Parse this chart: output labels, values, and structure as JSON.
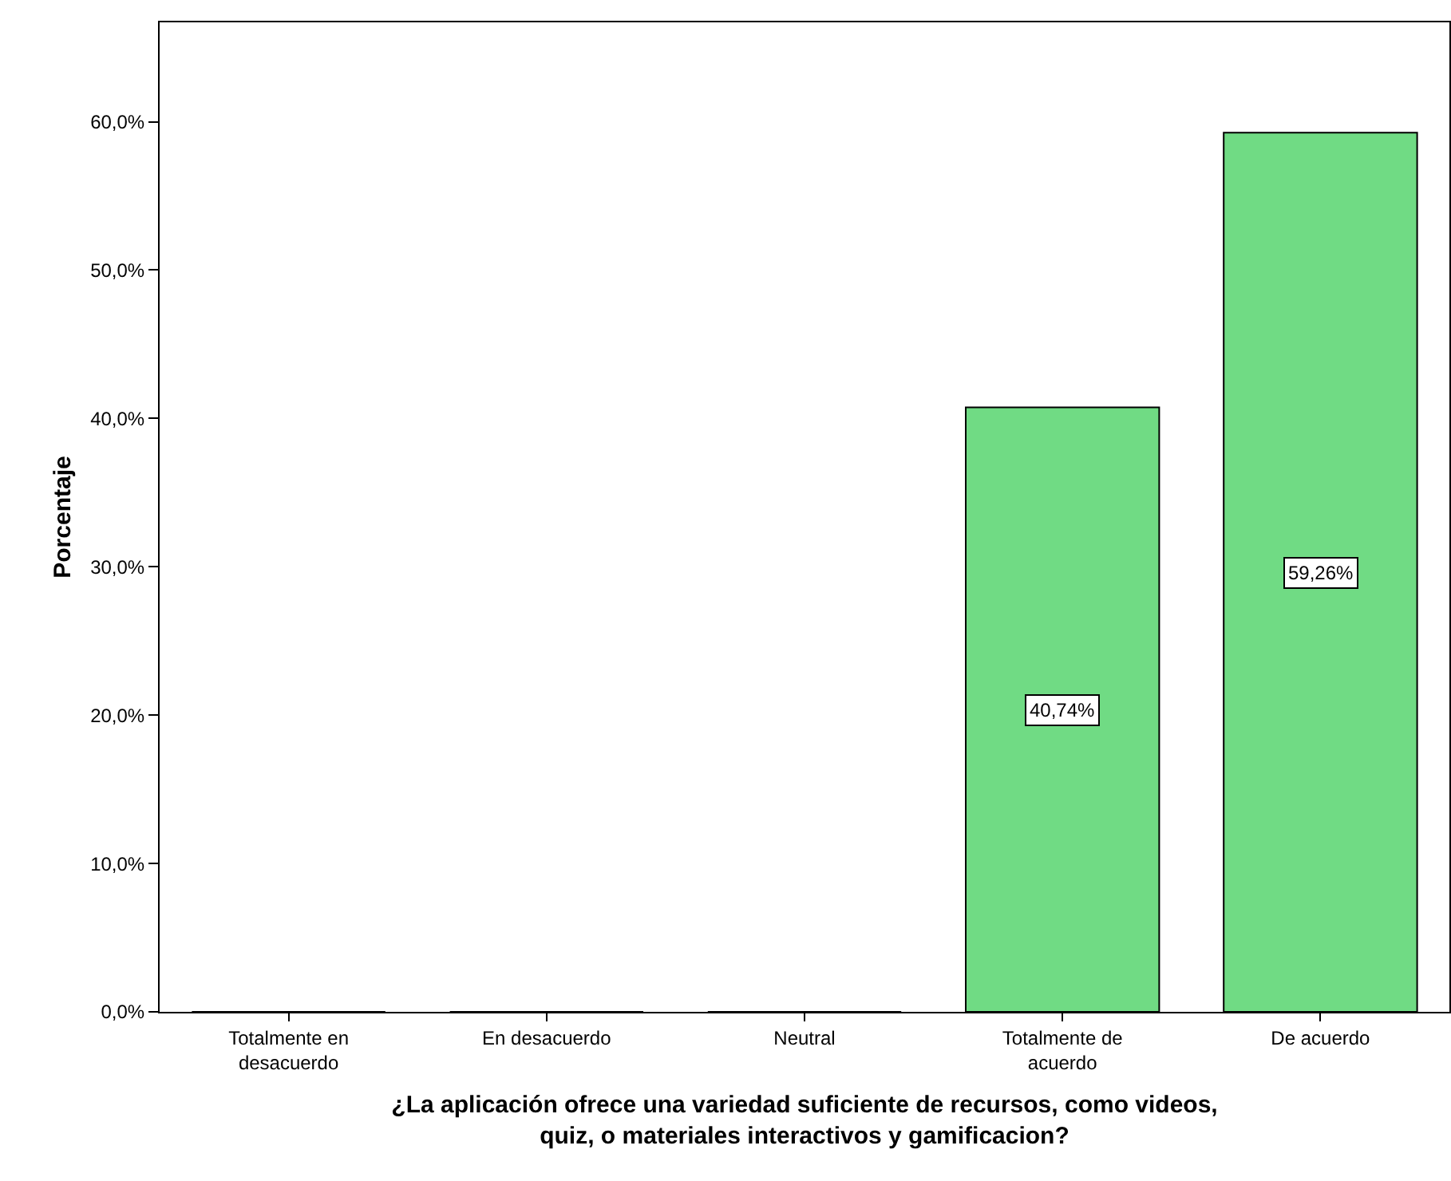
{
  "chart_data": {
    "type": "bar",
    "categories": [
      "Totalmente en desacuerdo",
      "En desacuerdo",
      "Neutral",
      "Totalmente de acuerdo",
      "De acuerdo"
    ],
    "values": [
      0,
      0,
      0,
      40.74,
      59.26
    ],
    "value_labels": [
      null,
      null,
      null,
      "40,74%",
      "59,26%"
    ],
    "color": "#70db84",
    "ylabel": "Porcentaje",
    "xlabel": "¿La aplicación ofrece una variedad suficiente de recursos, como videos, quiz, o materiales interactivos y gamificacion?",
    "ylim": [
      0,
      66.7
    ],
    "yticks": [
      {
        "value": 0,
        "label": "0,0%"
      },
      {
        "value": 10,
        "label": "10,0%"
      },
      {
        "value": 20,
        "label": "20,0%"
      },
      {
        "value": 30,
        "label": "30,0%"
      },
      {
        "value": 40,
        "label": "40,0%"
      },
      {
        "value": 50,
        "label": "50,0%"
      },
      {
        "value": 60,
        "label": "60,0%"
      }
    ],
    "grid": false
  }
}
